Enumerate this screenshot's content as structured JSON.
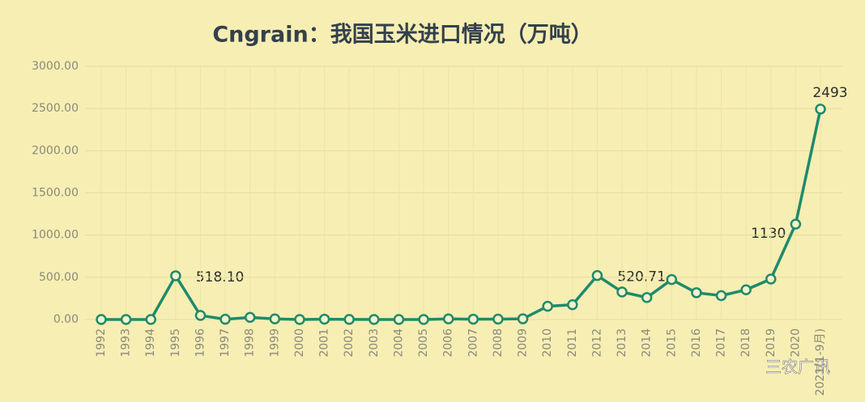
{
  "chart_data": {
    "type": "line",
    "title": "Cngrain：我国玉米进口情况（万吨）",
    "categories": [
      "1992",
      "1993",
      "1994",
      "1995",
      "1996",
      "1997",
      "1998",
      "1999",
      "2000",
      "2001",
      "2002",
      "2003",
      "2004",
      "2005",
      "2006",
      "2007",
      "2008",
      "2009",
      "2010",
      "2011",
      "2012",
      "2013",
      "2014",
      "2015",
      "2016",
      "2017",
      "2018",
      "2019",
      "2020",
      "2021(1-9月)"
    ],
    "series": [
      {
        "name": "玉米进口",
        "color": "#1f8a6c",
        "values": [
          0,
          0,
          0,
          518.1,
          48,
          3,
          25,
          7,
          0,
          4,
          1,
          0,
          0,
          0,
          7,
          4,
          5,
          8,
          157,
          175,
          520.71,
          326,
          260,
          473,
          317,
          283,
          352,
          479,
          1130,
          2493
        ],
        "value_labels": [
          null,
          null,
          null,
          "518.10",
          null,
          null,
          null,
          null,
          null,
          null,
          null,
          null,
          null,
          null,
          null,
          null,
          null,
          null,
          null,
          null,
          "520.71",
          null,
          null,
          null,
          null,
          null,
          null,
          null,
          "1130",
          "2493"
        ]
      }
    ],
    "ylim": [
      0,
      3000
    ],
    "yticks": [
      {
        "value": 0,
        "label": "0.00"
      },
      {
        "value": 500,
        "label": "500.00"
      },
      {
        "value": 1000,
        "label": "1000.00"
      },
      {
        "value": 1500,
        "label": "1500.00"
      },
      {
        "value": 2000,
        "label": "2000.00"
      },
      {
        "value": 2500,
        "label": "2500.00"
      },
      {
        "value": 3000,
        "label": "3000.00"
      }
    ],
    "grid": true,
    "watermark": "三农广讯"
  }
}
